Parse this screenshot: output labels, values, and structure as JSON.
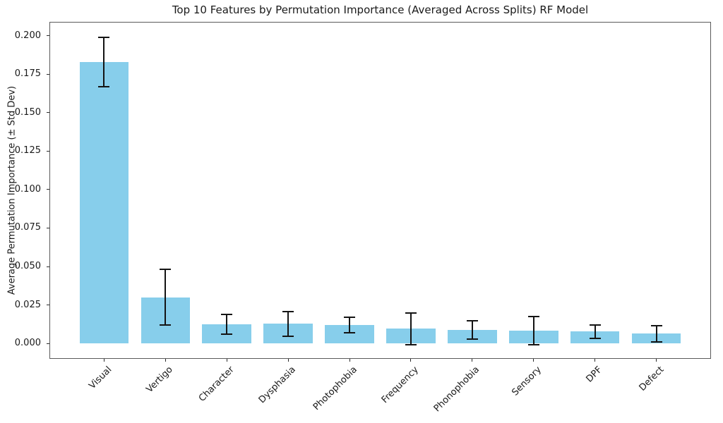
{
  "chart_data": {
    "type": "bar",
    "title": "Top 10 Features by Permutation Importance (Averaged Across Splits) RF Model",
    "xlabel": "",
    "ylabel": "Average Permutation Importance (± Std Dev)",
    "categories": [
      "Visual",
      "Vertigo",
      "Character",
      "Dysphasia",
      "Photophobia",
      "Frequency",
      "Phonophobia",
      "Sensory",
      "DPF",
      "Defect"
    ],
    "values": [
      0.183,
      0.03,
      0.0125,
      0.0127,
      0.012,
      0.0096,
      0.0087,
      0.0084,
      0.0078,
      0.0064
    ],
    "errors": [
      0.016,
      0.018,
      0.0063,
      0.008,
      0.0052,
      0.0104,
      0.006,
      0.0093,
      0.0043,
      0.0052
    ],
    "ytick_labels": [
      "0.000",
      "0.025",
      "0.050",
      "0.075",
      "0.100",
      "0.125",
      "0.150",
      "0.175",
      "0.200"
    ],
    "yticks": [
      0.0,
      0.025,
      0.05,
      0.075,
      0.1,
      0.125,
      0.15,
      0.175,
      0.2
    ],
    "ylim": [
      -0.01,
      0.209
    ],
    "xlim": [
      -0.89,
      9.89
    ],
    "bar_width": 0.8,
    "bar_color": "#87CEEB",
    "error_color": "#141414",
    "grid": false,
    "legend_position": "none"
  }
}
